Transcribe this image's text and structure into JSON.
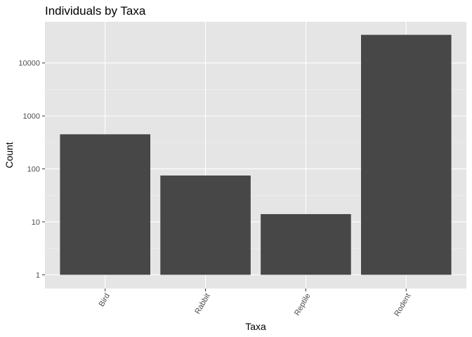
{
  "chart_data": {
    "type": "bar",
    "title": "Individuals by Taxa",
    "xlabel": "Taxa",
    "ylabel": "Count",
    "categories": [
      "Bird",
      "Rabbit",
      "Reptile",
      "Rodent"
    ],
    "values": [
      450,
      75,
      14,
      34000
    ],
    "yscale": "log10",
    "ylim": [
      0.55,
      60000
    ],
    "yticks": [
      1,
      10,
      100,
      1000,
      10000
    ],
    "ytick_labels": [
      "1",
      "10",
      "100",
      "1000",
      "10000"
    ],
    "x_tick_label_rotation": -60,
    "grid": true,
    "legend": "none",
    "colors": {
      "panel_background": "#e5e5e5",
      "bar_fill": "#474747",
      "grid_major": "#ffffff",
      "grid_minor": "#f2f2f2",
      "tick_text": "#4d4d4d",
      "text": "#000000"
    }
  }
}
